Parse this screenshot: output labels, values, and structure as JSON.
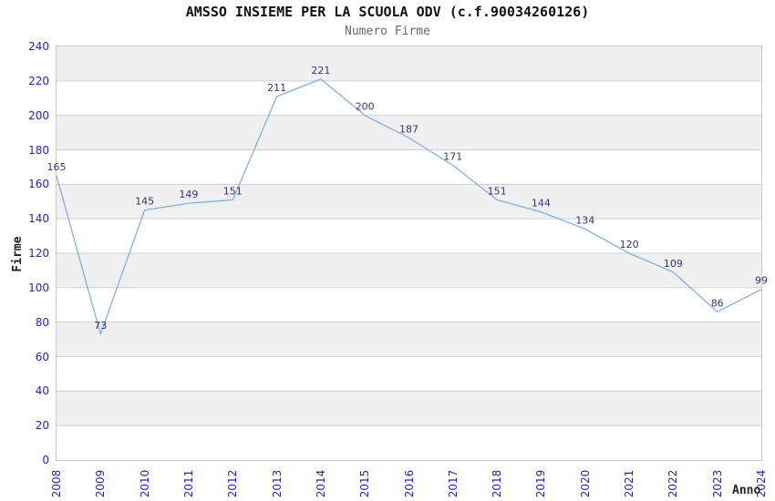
{
  "chart_data": {
    "type": "line",
    "title": "AMSSO INSIEME PER LA SCUOLA ODV (c.f.90034260126)",
    "subtitle": "Numero Firme",
    "xlabel": "Anno",
    "ylabel": "Firme",
    "categories": [
      "2008",
      "2009",
      "2010",
      "2011",
      "2012",
      "2013",
      "2014",
      "2015",
      "2016",
      "2017",
      "2018",
      "2019",
      "2020",
      "2021",
      "2022",
      "2023",
      "2024"
    ],
    "values": [
      165,
      73,
      145,
      149,
      151,
      211,
      221,
      200,
      187,
      171,
      151,
      144,
      134,
      120,
      109,
      86,
      99
    ],
    "ylim": [
      0,
      240
    ],
    "yticks": [
      240,
      220,
      200,
      180,
      160,
      140,
      120,
      100,
      80,
      60,
      40,
      20,
      0
    ],
    "grid": "horizontal gridlines with alternating gray/white bands",
    "legend_position": "none",
    "marker": "none",
    "colors": {
      "line": "#7fb0e4",
      "tick_label": "#2222cc",
      "data_label": "#333377",
      "band_gray": "#f0f0f0",
      "band_white": "#ffffff",
      "grid_line": "#cfcfcf",
      "plot_border": "#c9c9c9",
      "title": "#111111",
      "subtitle": "#666666",
      "axis_title": "#222222"
    }
  }
}
